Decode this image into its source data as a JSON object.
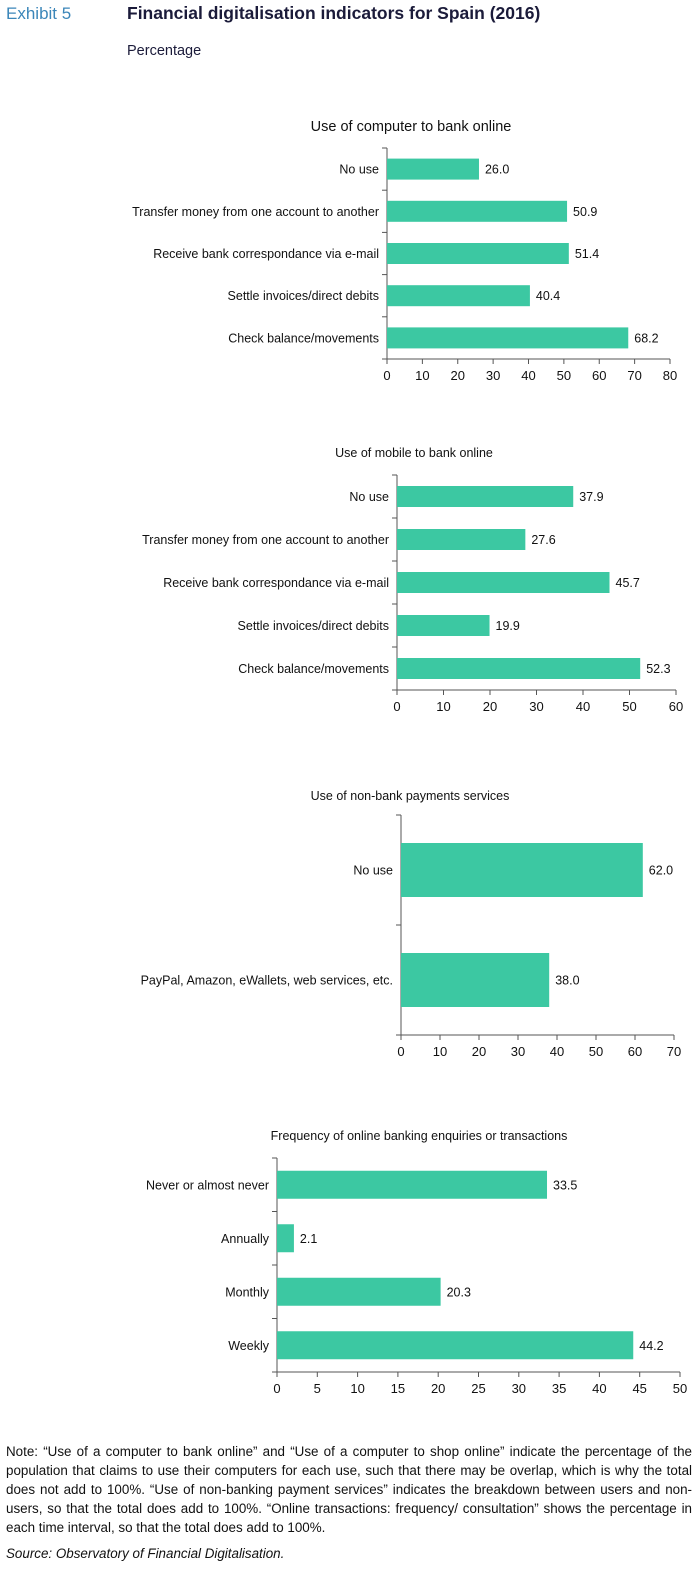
{
  "header": {
    "exhibit": "Exhibit 5",
    "title": "Financial digitalisation indicators for Spain (2016)",
    "subtitle": "Percentage"
  },
  "colors": {
    "bar": "#3cc8a2",
    "axis": "#555555",
    "exhibit": "#3b86b9"
  },
  "chart_data": [
    {
      "type": "bar",
      "orientation": "horizontal",
      "title": "Use of computer to bank online",
      "categories": [
        "No use",
        "Transfer money from one account to another",
        "Receive bank correspondance via e-mail",
        "Settle invoices/direct debits",
        "Check balance/movements"
      ],
      "values": [
        26.0,
        50.9,
        51.4,
        40.4,
        68.2
      ],
      "value_labels": [
        "26.0",
        "50.9",
        "51.4",
        "40.4",
        "68.2"
      ],
      "xlim": [
        0,
        80
      ],
      "ticks": [
        0,
        10,
        20,
        30,
        40,
        50,
        60,
        70,
        80
      ],
      "grid": false
    },
    {
      "type": "bar",
      "orientation": "horizontal",
      "title": "Use of mobile to bank online",
      "categories": [
        "No use",
        "Transfer money from one account to another",
        "Receive bank correspondance via e-mail",
        "Settle invoices/direct debits",
        "Check balance/movements"
      ],
      "values": [
        37.9,
        27.6,
        45.7,
        19.9,
        52.3
      ],
      "value_labels": [
        "37.9",
        "27.6",
        "45.7",
        "19.9",
        "52.3"
      ],
      "xlim": [
        0,
        60
      ],
      "ticks": [
        0,
        10,
        20,
        30,
        40,
        50,
        60
      ],
      "grid": false
    },
    {
      "type": "bar",
      "orientation": "horizontal",
      "title": "Use of non-bank payments services",
      "categories": [
        "No use",
        "PayPal, Amazon, eWallets, web services, etc."
      ],
      "values": [
        62.0,
        38.0
      ],
      "value_labels": [
        "62.0",
        "38.0"
      ],
      "xlim": [
        0,
        70
      ],
      "ticks": [
        0,
        10,
        20,
        30,
        40,
        50,
        60,
        70
      ],
      "grid": false
    },
    {
      "type": "bar",
      "orientation": "horizontal",
      "title": "Frequency of online banking enquiries or transactions",
      "categories": [
        "Never or almost never",
        "Annually",
        "Monthly",
        "Weekly"
      ],
      "values": [
        33.5,
        2.1,
        20.3,
        44.2
      ],
      "value_labels": [
        "33.5",
        "2.1",
        "20.3",
        "44.2"
      ],
      "xlim": [
        0,
        50
      ],
      "ticks": [
        0,
        5,
        10,
        15,
        20,
        25,
        30,
        35,
        40,
        45,
        50
      ],
      "grid": false
    }
  ],
  "footer": {
    "note": "Note: “Use of a computer to bank online” and “Use of a computer to shop online” indicate the percentage of the population that claims to use their computers for each use, such that there may be overlap, which is why the total does not add to 100%. “Use of non-banking payment services” indicates the breakdown between users and non-users, so that the total does add to 100%. “Online transactions: frequency/ consultation” shows the percentage in each time interval, so that the total does add to 100%.",
    "source": "Source: Observatory of Financial Digitalisation."
  }
}
